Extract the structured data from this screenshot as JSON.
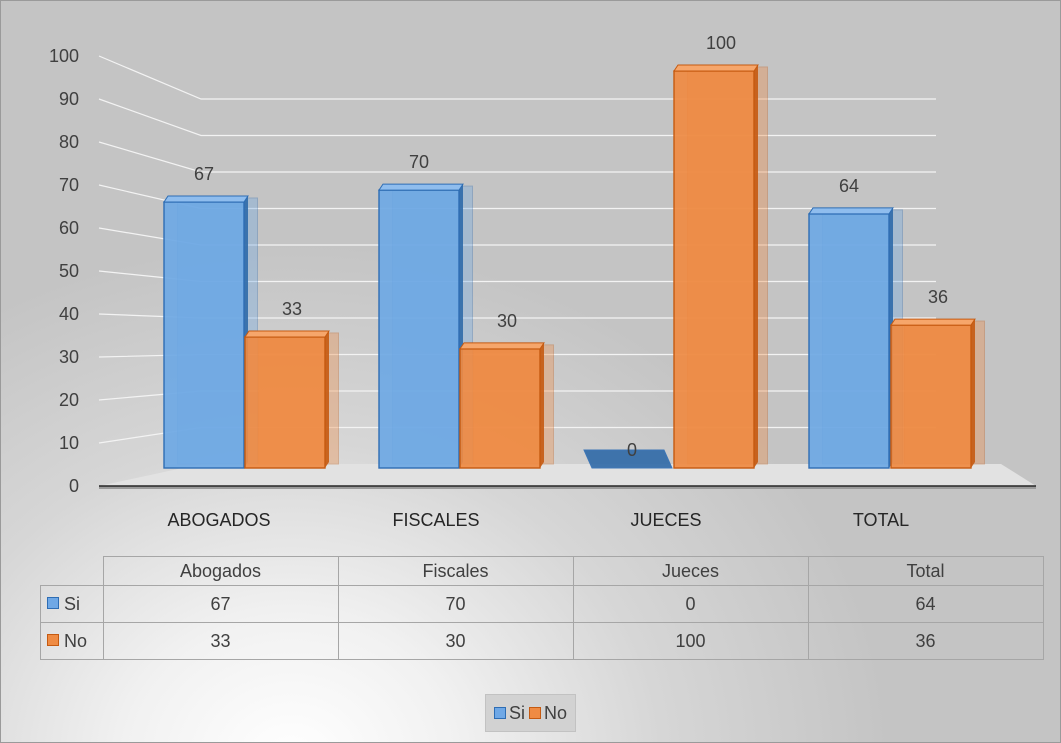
{
  "chart_data": {
    "type": "bar",
    "title": "",
    "xlabel": "",
    "ylabel": "",
    "ylim": [
      0,
      100
    ],
    "yticks": [
      0,
      10,
      20,
      30,
      40,
      50,
      60,
      70,
      80,
      90,
      100
    ],
    "categories": [
      "ABOGADOS",
      "FISCALES",
      "JUECES",
      "TOTAL"
    ],
    "series": [
      {
        "name": "Si",
        "values": [
          67,
          70,
          0,
          64
        ],
        "color": "#5b9bd5"
      },
      {
        "name": "No",
        "values": [
          33,
          30,
          100,
          36
        ],
        "color": "#ed7d31"
      }
    ],
    "legend_placement": "bottom",
    "grid": true,
    "table": {
      "header": [
        "Abogados",
        "Fiscales",
        "Jueces",
        "Total"
      ],
      "rows": [
        {
          "series": "Si",
          "values": [
            "67",
            "70",
            "0",
            "64"
          ]
        },
        {
          "series": "No",
          "values": [
            "33",
            "30",
            "100",
            "36"
          ]
        }
      ]
    }
  }
}
